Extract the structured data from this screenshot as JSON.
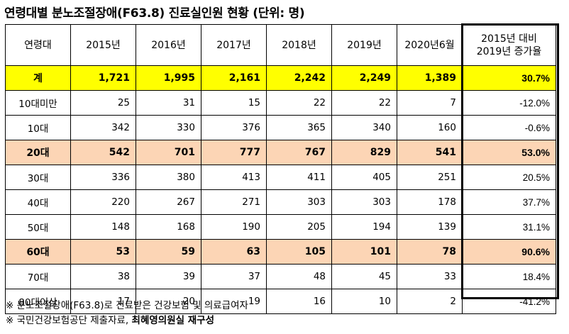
{
  "title": "연령대별 분노조절장애(F63.8) 진료실인원 현황 (단위: 명)",
  "table": {
    "headers": [
      "연령대",
      "2015년",
      "2016년",
      "2017년",
      "2018년",
      "2019년",
      "2020년6월",
      "2015년 대비\n2019년 증가율"
    ],
    "rows": [
      {
        "label": "계",
        "values": [
          "1,721",
          "1,995",
          "2,161",
          "2,242",
          "2,249",
          "1,389"
        ],
        "rate": "30.7%",
        "style": "total"
      },
      {
        "label": "10대미만",
        "values": [
          "25",
          "31",
          "15",
          "22",
          "22",
          "7"
        ],
        "rate": "-12.0%",
        "style": "normal"
      },
      {
        "label": "10대",
        "values": [
          "342",
          "330",
          "376",
          "365",
          "340",
          "160"
        ],
        "rate": "-0.6%",
        "style": "normal"
      },
      {
        "label": "20대",
        "values": [
          "542",
          "701",
          "777",
          "767",
          "829",
          "541"
        ],
        "rate": "53.0%",
        "style": "highlight"
      },
      {
        "label": "30대",
        "values": [
          "336",
          "380",
          "413",
          "411",
          "405",
          "251"
        ],
        "rate": "20.5%",
        "style": "normal"
      },
      {
        "label": "40대",
        "values": [
          "220",
          "267",
          "271",
          "303",
          "303",
          "178"
        ],
        "rate": "37.7%",
        "style": "normal"
      },
      {
        "label": "50대",
        "values": [
          "148",
          "168",
          "190",
          "205",
          "194",
          "139"
        ],
        "rate": "31.1%",
        "style": "normal"
      },
      {
        "label": "60대",
        "values": [
          "53",
          "59",
          "63",
          "105",
          "101",
          "78"
        ],
        "rate": "90.6%",
        "style": "highlight"
      },
      {
        "label": "70대",
        "values": [
          "38",
          "39",
          "37",
          "48",
          "45",
          "33"
        ],
        "rate": "18.4%",
        "style": "normal"
      },
      {
        "label": "80대이상",
        "values": [
          "17",
          "20",
          "19",
          "16",
          "10",
          "2"
        ],
        "rate": "-41.2%",
        "style": "normal"
      }
    ]
  },
  "notes": {
    "note1": "※ 분노조절장애(F63.8)로 진료받은 건강보험 및 의료급여자",
    "note2_prefix": "※ 국민건강보험공단 제출자료, ",
    "note2_bold": "최혜영의원실 재구성"
  }
}
